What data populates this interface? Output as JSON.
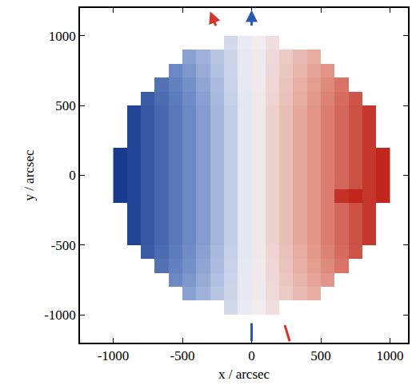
{
  "chart_data": {
    "type": "heatmap",
    "x_label": "x / arcsec",
    "y_label": "y / arcsec",
    "xlim": [
      -1240,
      1130
    ],
    "ylim": [
      -1200,
      1200
    ],
    "xticks": [
      -1000,
      -500,
      0,
      500,
      1000
    ],
    "yticks": [
      -1000,
      -500,
      0,
      500,
      1000
    ],
    "grid": false,
    "zlim": [
      -1,
      1
    ],
    "x": [
      -950,
      -850,
      -750,
      -650,
      -550,
      -450,
      -350,
      -250,
      -150,
      -50,
      50,
      150,
      250,
      350,
      450,
      550,
      650,
      750,
      850,
      950
    ],
    "y": [
      -950,
      -850,
      -750,
      -650,
      -550,
      -450,
      -350,
      -250,
      -150,
      -50,
      50,
      150,
      250,
      350,
      450,
      550,
      650,
      750,
      850,
      950
    ],
    "z": [
      [
        null,
        null,
        null,
        null,
        null,
        null,
        null,
        null,
        -0.12,
        -0.04,
        0.04,
        0.12,
        null,
        null,
        null,
        null,
        null,
        null,
        null,
        null
      ],
      [
        null,
        null,
        null,
        null,
        null,
        -0.4,
        -0.32,
        -0.23,
        -0.14,
        -0.05,
        0.05,
        0.14,
        0.23,
        0.32,
        0.4,
        null,
        null,
        null,
        null,
        null
      ],
      [
        null,
        null,
        null,
        null,
        -0.52,
        -0.44,
        -0.35,
        -0.25,
        -0.15,
        -0.05,
        0.05,
        0.15,
        0.25,
        0.35,
        0.44,
        0.52,
        null,
        null,
        null,
        null
      ],
      [
        null,
        null,
        null,
        -0.66,
        -0.57,
        -0.48,
        -0.38,
        -0.27,
        -0.16,
        -0.05,
        0.05,
        0.16,
        0.27,
        0.38,
        0.48,
        0.57,
        0.66,
        null,
        null,
        null
      ],
      [
        null,
        null,
        -0.8,
        -0.7,
        -0.6,
        -0.5,
        -0.4,
        -0.28,
        -0.17,
        -0.06,
        0.06,
        0.17,
        0.28,
        0.4,
        0.5,
        0.6,
        0.7,
        0.8,
        null,
        null
      ],
      [
        null,
        -0.93,
        -0.82,
        -0.72,
        -0.62,
        -0.52,
        -0.42,
        -0.3,
        -0.18,
        -0.06,
        0.06,
        0.18,
        0.3,
        0.42,
        0.52,
        0.62,
        0.72,
        0.82,
        0.93,
        null
      ],
      [
        null,
        -0.93,
        -0.82,
        -0.72,
        -0.62,
        -0.52,
        -0.42,
        -0.3,
        -0.18,
        -0.06,
        0.06,
        0.18,
        0.3,
        0.42,
        0.52,
        0.62,
        0.72,
        0.82,
        0.93,
        null
      ],
      [
        null,
        -0.93,
        -0.82,
        -0.72,
        -0.62,
        -0.52,
        -0.42,
        -0.3,
        -0.18,
        -0.06,
        0.06,
        0.18,
        0.3,
        0.42,
        0.52,
        0.62,
        0.72,
        0.82,
        0.93,
        null
      ],
      [
        -1.0,
        -0.93,
        -0.82,
        -0.72,
        -0.62,
        -0.52,
        -0.42,
        -0.3,
        -0.18,
        -0.06,
        0.06,
        0.18,
        0.3,
        0.42,
        0.52,
        0.62,
        0.95,
        1.0,
        0.93,
        1.0
      ],
      [
        -1.0,
        -0.93,
        -0.82,
        -0.72,
        -0.62,
        -0.52,
        -0.42,
        -0.3,
        -0.18,
        -0.06,
        0.06,
        0.18,
        0.3,
        0.42,
        0.52,
        0.62,
        0.72,
        0.82,
        0.93,
        1.0
      ],
      [
        -1.0,
        -0.93,
        -0.82,
        -0.72,
        -0.62,
        -0.52,
        -0.42,
        -0.3,
        -0.18,
        -0.06,
        0.06,
        0.18,
        0.3,
        0.42,
        0.52,
        0.62,
        0.72,
        0.82,
        0.93,
        1.0
      ],
      [
        -1.0,
        -0.93,
        -0.82,
        -0.72,
        -0.62,
        -0.52,
        -0.42,
        -0.3,
        -0.18,
        -0.06,
        0.06,
        0.18,
        0.3,
        0.42,
        0.52,
        0.62,
        0.72,
        0.82,
        0.93,
        1.0
      ],
      [
        null,
        -0.93,
        -0.82,
        -0.72,
        -0.62,
        -0.52,
        -0.42,
        -0.3,
        -0.18,
        -0.06,
        0.06,
        0.18,
        0.3,
        0.42,
        0.52,
        0.62,
        0.72,
        0.82,
        0.93,
        null
      ],
      [
        null,
        -0.93,
        -0.82,
        -0.72,
        -0.62,
        -0.52,
        -0.42,
        -0.3,
        -0.18,
        -0.06,
        0.06,
        0.18,
        0.3,
        0.42,
        0.52,
        0.62,
        0.72,
        0.82,
        0.93,
        null
      ],
      [
        null,
        -0.93,
        -0.82,
        -0.72,
        -0.62,
        -0.52,
        -0.42,
        -0.3,
        -0.18,
        -0.06,
        0.06,
        0.18,
        0.3,
        0.42,
        0.52,
        0.62,
        0.72,
        0.82,
        0.93,
        null
      ],
      [
        null,
        null,
        -0.8,
        -0.7,
        -0.6,
        -0.5,
        -0.4,
        -0.28,
        -0.17,
        -0.06,
        0.06,
        0.17,
        0.28,
        0.4,
        0.5,
        0.6,
        0.7,
        0.8,
        null,
        null
      ],
      [
        null,
        null,
        null,
        -0.66,
        -0.57,
        -0.48,
        -0.38,
        -0.27,
        -0.16,
        -0.05,
        0.05,
        0.16,
        0.27,
        0.38,
        0.48,
        0.57,
        0.66,
        null,
        null,
        null
      ],
      [
        null,
        null,
        null,
        null,
        -0.52,
        -0.44,
        -0.35,
        -0.25,
        -0.15,
        -0.05,
        0.05,
        0.15,
        0.25,
        0.35,
        0.44,
        0.52,
        null,
        null,
        null,
        null
      ],
      [
        null,
        null,
        null,
        null,
        null,
        -0.4,
        -0.32,
        -0.23,
        -0.14,
        -0.05,
        0.05,
        0.14,
        0.23,
        0.32,
        0.4,
        null,
        null,
        null,
        null,
        null
      ],
      [
        null,
        null,
        null,
        null,
        null,
        null,
        null,
        null,
        -0.12,
        -0.04,
        0.04,
        0.12,
        null,
        null,
        null,
        null,
        null,
        null,
        null,
        null
      ]
    ]
  }
}
